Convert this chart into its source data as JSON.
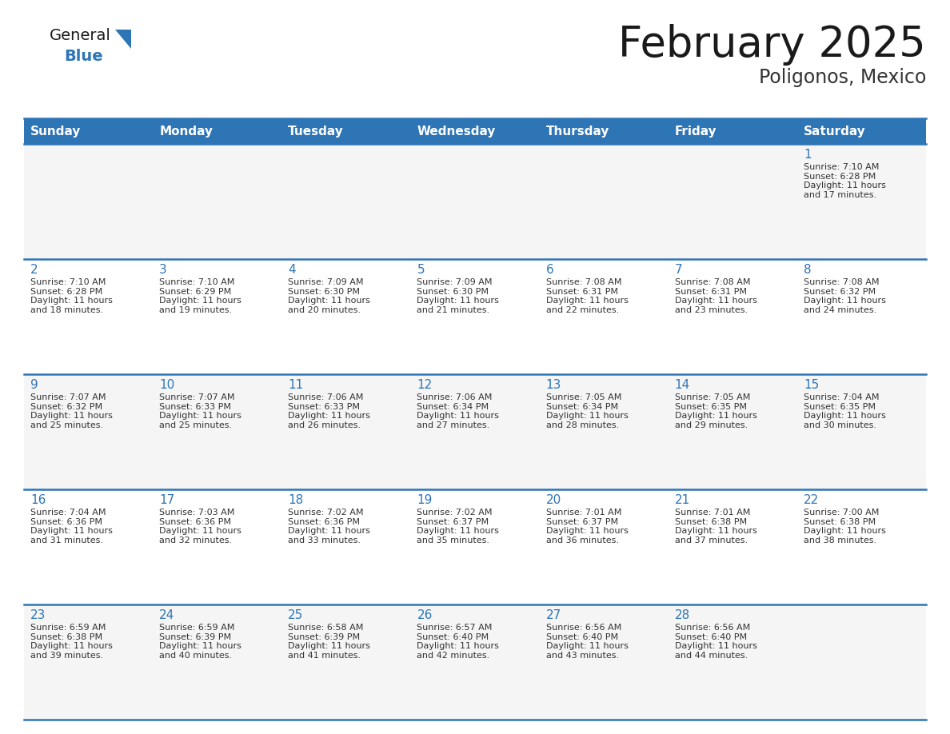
{
  "title": "February 2025",
  "subtitle": "Poligonos, Mexico",
  "header_bg": "#2E75B6",
  "header_text_color": "#FFFFFF",
  "cell_bg_row0": "#F5F5F5",
  "cell_bg_odd": "#FFFFFF",
  "cell_bg_even": "#F5F5F5",
  "day_names": [
    "Sunday",
    "Monday",
    "Tuesday",
    "Wednesday",
    "Thursday",
    "Friday",
    "Saturday"
  ],
  "days_data": [
    {
      "day": 1,
      "col": 6,
      "row": 0,
      "sunrise": "7:10 AM",
      "sunset": "6:28 PM",
      "daylight": "11 hours and 17 minutes."
    },
    {
      "day": 2,
      "col": 0,
      "row": 1,
      "sunrise": "7:10 AM",
      "sunset": "6:28 PM",
      "daylight": "11 hours and 18 minutes."
    },
    {
      "day": 3,
      "col": 1,
      "row": 1,
      "sunrise": "7:10 AM",
      "sunset": "6:29 PM",
      "daylight": "11 hours and 19 minutes."
    },
    {
      "day": 4,
      "col": 2,
      "row": 1,
      "sunrise": "7:09 AM",
      "sunset": "6:30 PM",
      "daylight": "11 hours and 20 minutes."
    },
    {
      "day": 5,
      "col": 3,
      "row": 1,
      "sunrise": "7:09 AM",
      "sunset": "6:30 PM",
      "daylight": "11 hours and 21 minutes."
    },
    {
      "day": 6,
      "col": 4,
      "row": 1,
      "sunrise": "7:08 AM",
      "sunset": "6:31 PM",
      "daylight": "11 hours and 22 minutes."
    },
    {
      "day": 7,
      "col": 5,
      "row": 1,
      "sunrise": "7:08 AM",
      "sunset": "6:31 PM",
      "daylight": "11 hours and 23 minutes."
    },
    {
      "day": 8,
      "col": 6,
      "row": 1,
      "sunrise": "7:08 AM",
      "sunset": "6:32 PM",
      "daylight": "11 hours and 24 minutes."
    },
    {
      "day": 9,
      "col": 0,
      "row": 2,
      "sunrise": "7:07 AM",
      "sunset": "6:32 PM",
      "daylight": "11 hours and 25 minutes."
    },
    {
      "day": 10,
      "col": 1,
      "row": 2,
      "sunrise": "7:07 AM",
      "sunset": "6:33 PM",
      "daylight": "11 hours and 25 minutes."
    },
    {
      "day": 11,
      "col": 2,
      "row": 2,
      "sunrise": "7:06 AM",
      "sunset": "6:33 PM",
      "daylight": "11 hours and 26 minutes."
    },
    {
      "day": 12,
      "col": 3,
      "row": 2,
      "sunrise": "7:06 AM",
      "sunset": "6:34 PM",
      "daylight": "11 hours and 27 minutes."
    },
    {
      "day": 13,
      "col": 4,
      "row": 2,
      "sunrise": "7:05 AM",
      "sunset": "6:34 PM",
      "daylight": "11 hours and 28 minutes."
    },
    {
      "day": 14,
      "col": 5,
      "row": 2,
      "sunrise": "7:05 AM",
      "sunset": "6:35 PM",
      "daylight": "11 hours and 29 minutes."
    },
    {
      "day": 15,
      "col": 6,
      "row": 2,
      "sunrise": "7:04 AM",
      "sunset": "6:35 PM",
      "daylight": "11 hours and 30 minutes."
    },
    {
      "day": 16,
      "col": 0,
      "row": 3,
      "sunrise": "7:04 AM",
      "sunset": "6:36 PM",
      "daylight": "11 hours and 31 minutes."
    },
    {
      "day": 17,
      "col": 1,
      "row": 3,
      "sunrise": "7:03 AM",
      "sunset": "6:36 PM",
      "daylight": "11 hours and 32 minutes."
    },
    {
      "day": 18,
      "col": 2,
      "row": 3,
      "sunrise": "7:02 AM",
      "sunset": "6:36 PM",
      "daylight": "11 hours and 33 minutes."
    },
    {
      "day": 19,
      "col": 3,
      "row": 3,
      "sunrise": "7:02 AM",
      "sunset": "6:37 PM",
      "daylight": "11 hours and 35 minutes."
    },
    {
      "day": 20,
      "col": 4,
      "row": 3,
      "sunrise": "7:01 AM",
      "sunset": "6:37 PM",
      "daylight": "11 hours and 36 minutes."
    },
    {
      "day": 21,
      "col": 5,
      "row": 3,
      "sunrise": "7:01 AM",
      "sunset": "6:38 PM",
      "daylight": "11 hours and 37 minutes."
    },
    {
      "day": 22,
      "col": 6,
      "row": 3,
      "sunrise": "7:00 AM",
      "sunset": "6:38 PM",
      "daylight": "11 hours and 38 minutes."
    },
    {
      "day": 23,
      "col": 0,
      "row": 4,
      "sunrise": "6:59 AM",
      "sunset": "6:38 PM",
      "daylight": "11 hours and 39 minutes."
    },
    {
      "day": 24,
      "col": 1,
      "row": 4,
      "sunrise": "6:59 AM",
      "sunset": "6:39 PM",
      "daylight": "11 hours and 40 minutes."
    },
    {
      "day": 25,
      "col": 2,
      "row": 4,
      "sunrise": "6:58 AM",
      "sunset": "6:39 PM",
      "daylight": "11 hours and 41 minutes."
    },
    {
      "day": 26,
      "col": 3,
      "row": 4,
      "sunrise": "6:57 AM",
      "sunset": "6:40 PM",
      "daylight": "11 hours and 42 minutes."
    },
    {
      "day": 27,
      "col": 4,
      "row": 4,
      "sunrise": "6:56 AM",
      "sunset": "6:40 PM",
      "daylight": "11 hours and 43 minutes."
    },
    {
      "day": 28,
      "col": 5,
      "row": 4,
      "sunrise": "6:56 AM",
      "sunset": "6:40 PM",
      "daylight": "11 hours and 44 minutes."
    }
  ],
  "num_rows": 5,
  "num_cols": 7,
  "logo_text1": "General",
  "logo_text2": "Blue",
  "logo_color1": "#1a1a1a",
  "logo_color2": "#2E75B6",
  "logo_triangle_color": "#2E75B6",
  "title_color": "#1a1a1a",
  "subtitle_color": "#333333",
  "grid_line_color": "#2E75B6",
  "day_num_color": "#2E75B6",
  "cell_text_color": "#333333",
  "title_fontsize": 38,
  "subtitle_fontsize": 17,
  "header_fontsize": 11,
  "daynum_fontsize": 11,
  "cell_fontsize": 8
}
